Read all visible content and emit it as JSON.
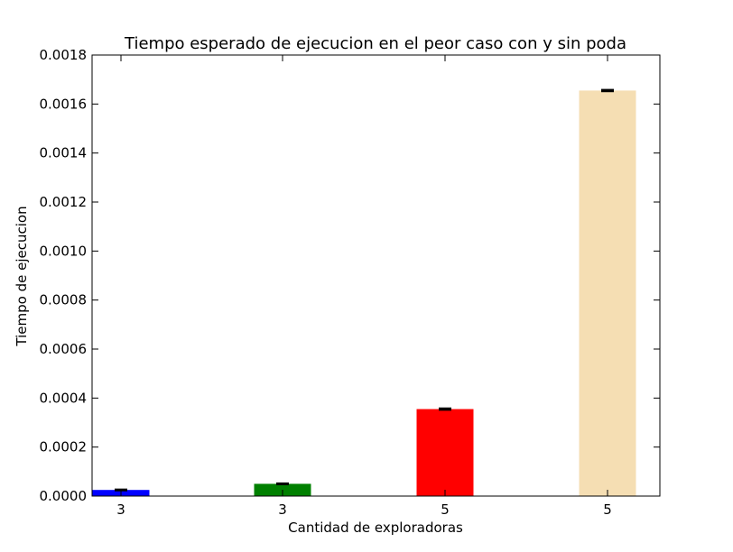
{
  "chart_data": {
    "type": "bar",
    "title": "Tiempo esperado de ejecucion en el peor caso con y sin poda",
    "xlabel": "Cantidad de exploradoras",
    "ylabel": "Tiempo de ejecucion",
    "ylim": [
      0,
      0.0018
    ],
    "yticks": [
      "0.0000",
      "0.0002",
      "0.0004",
      "0.0006",
      "0.0008",
      "0.0010",
      "0.0012",
      "0.0014",
      "0.0016",
      "0.0018"
    ],
    "categories": [
      "3",
      "3",
      "5",
      "5"
    ],
    "values": [
      2.5e-05,
      5e-05,
      0.000355,
      0.001655
    ],
    "errors": [
      2e-06,
      2e-06,
      3e-06,
      3e-06
    ],
    "colors": [
      "#0000ff",
      "#008000",
      "#ff0000",
      "#f5deb3"
    ],
    "grid": false
  }
}
